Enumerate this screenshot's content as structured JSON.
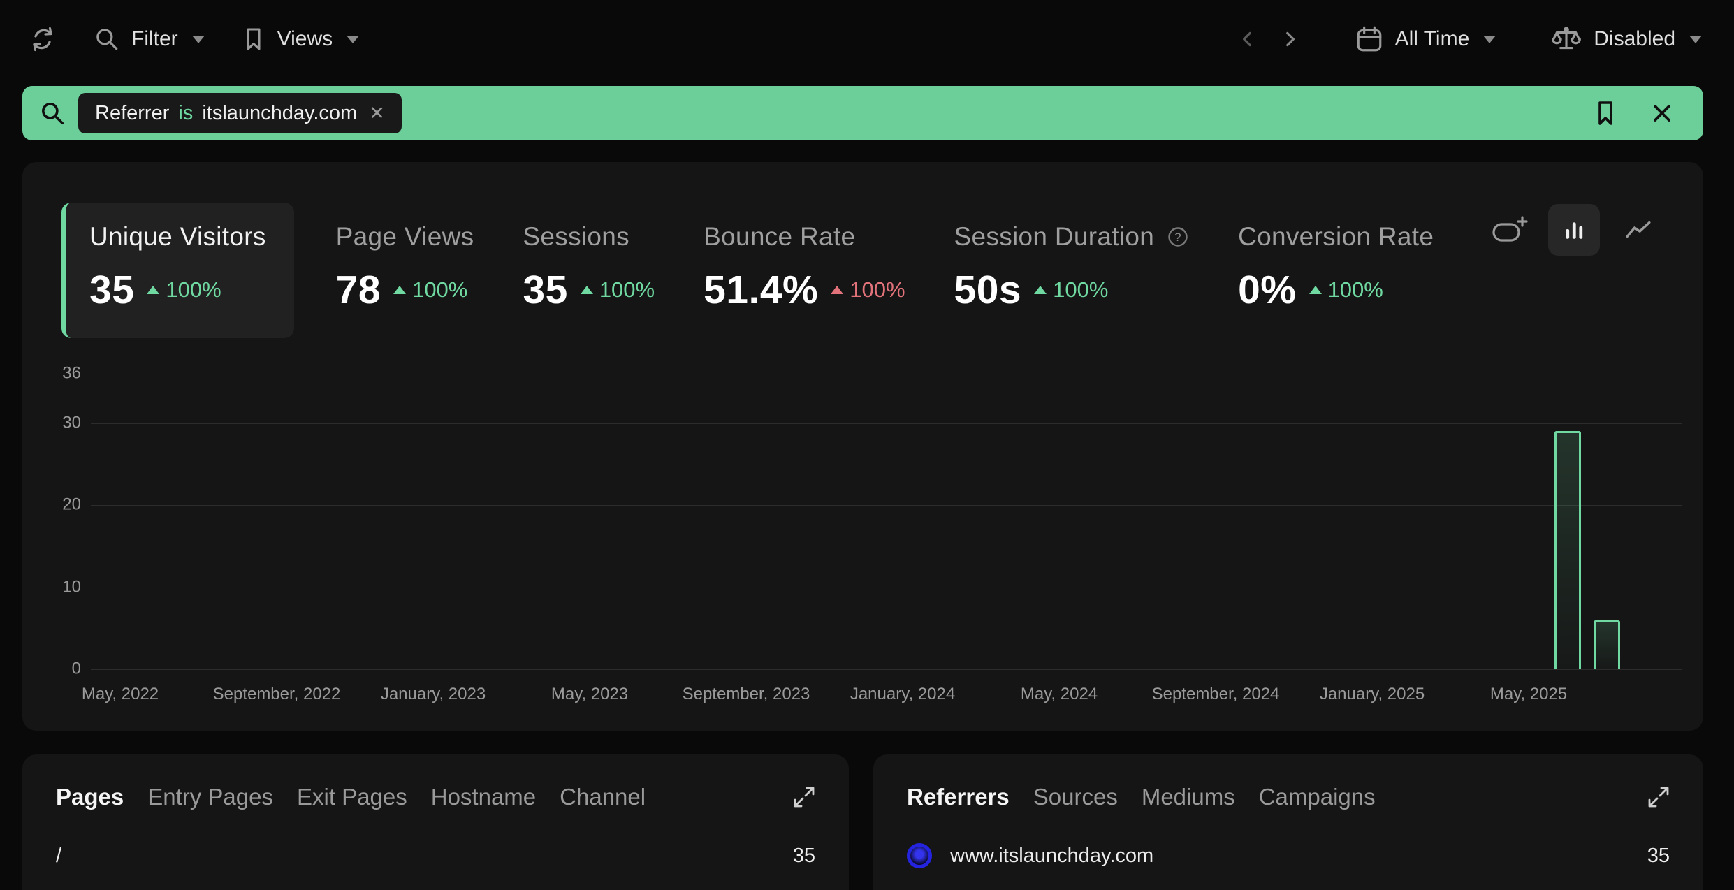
{
  "toolbar": {
    "refresh_icon": "refresh-icon",
    "filter_label": "Filter",
    "views_label": "Views",
    "prev_icon": "chevron-left-icon",
    "next_icon": "chevron-right-icon",
    "all_time_label": "All Time",
    "compare_label": "Disabled"
  },
  "filter_bar": {
    "search_icon": "search-icon",
    "chip": {
      "field": "Referrer",
      "operator": "is",
      "value": "itslaunchday.com",
      "remove_icon": "close-icon"
    },
    "bookmark_icon": "bookmark-icon",
    "close_icon": "close-icon"
  },
  "metrics": [
    {
      "label": "Unique Visitors",
      "value": "35",
      "delta": "100%",
      "direction": "up",
      "trend": "positive",
      "active": true,
      "has_help": false
    },
    {
      "label": "Page Views",
      "value": "78",
      "delta": "100%",
      "direction": "up",
      "trend": "positive",
      "active": false,
      "has_help": false
    },
    {
      "label": "Sessions",
      "value": "35",
      "delta": "100%",
      "direction": "up",
      "trend": "positive",
      "active": false,
      "has_help": false
    },
    {
      "label": "Bounce Rate",
      "value": "51.4%",
      "delta": "100%",
      "direction": "up",
      "trend": "negative",
      "active": false,
      "has_help": false
    },
    {
      "label": "Session Duration",
      "value": "50s",
      "delta": "100%",
      "direction": "up",
      "trend": "positive",
      "active": false,
      "has_help": true
    },
    {
      "label": "Conversion Rate",
      "value": "0%",
      "delta": "100%",
      "direction": "up",
      "trend": "positive",
      "active": false,
      "has_help": false
    }
  ],
  "chart_type_icons": [
    {
      "name": "add-comparison-icon",
      "active": false
    },
    {
      "name": "bar-chart-icon",
      "active": true
    },
    {
      "name": "line-chart-icon",
      "active": false
    }
  ],
  "chart_data": {
    "type": "bar",
    "metric": "Unique Visitors",
    "ylim": [
      0,
      36
    ],
    "yticks": [
      0,
      10,
      20,
      30,
      36
    ],
    "xticks": [
      "May, 2022",
      "September, 2022",
      "January, 2023",
      "May, 2023",
      "September, 2023",
      "January, 2024",
      "May, 2024",
      "September, 2024",
      "January, 2025",
      "May, 2025"
    ],
    "xtick_spacing_months": 4,
    "grid": "horizontal",
    "bars": [
      {
        "month": "June, 2025",
        "month_index": 37,
        "value": 29
      },
      {
        "month": "July, 2025",
        "month_index": 38,
        "value": 6
      }
    ]
  },
  "panels": {
    "pages": {
      "tabs": [
        {
          "label": "Pages",
          "active": true
        },
        {
          "label": "Entry Pages",
          "active": false
        },
        {
          "label": "Exit Pages",
          "active": false
        },
        {
          "label": "Hostname",
          "active": false
        },
        {
          "label": "Channel",
          "active": false
        }
      ],
      "expand_icon": "expand-icon",
      "rows": [
        {
          "label": "/",
          "value": "35",
          "favicon": false
        }
      ]
    },
    "referrers": {
      "tabs": [
        {
          "label": "Referrers",
          "active": true
        },
        {
          "label": "Sources",
          "active": false
        },
        {
          "label": "Mediums",
          "active": false
        },
        {
          "label": "Campaigns",
          "active": false
        }
      ],
      "expand_icon": "expand-icon",
      "rows": [
        {
          "label": "www.itslaunchday.com",
          "value": "35",
          "favicon": true
        }
      ]
    }
  },
  "colors": {
    "accent_green": "#6fd9a1",
    "filter_bar_green": "#6ccf9a",
    "negative_red": "#e2737b",
    "card_bg": "#151515",
    "page_bg": "#090909",
    "favicon_blue": "#2424e0"
  }
}
